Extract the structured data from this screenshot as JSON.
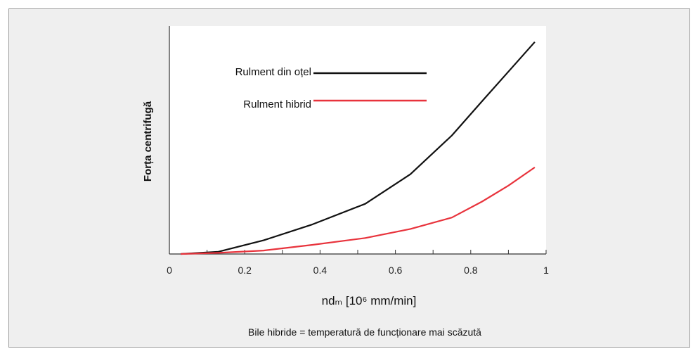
{
  "chart_data": {
    "type": "line",
    "title": "",
    "xlabel": "ndₘ [10⁶ mm/min]",
    "ylabel": "Forța centrifugă",
    "xlim": [
      0,
      1
    ],
    "ylim": [
      0,
      1
    ],
    "x_ticks": [
      "0",
      "0.2",
      "0.4",
      "0.6",
      "0.8",
      "1"
    ],
    "y_ticks_shown": false,
    "grid": false,
    "legend_position": "top-left",
    "caption": "Bile hibride = temperatură de funcționare mai scăzută",
    "series": [
      {
        "name": "Rulment din oțel",
        "color": "#111111",
        "x": [
          0.03,
          0.13,
          0.25,
          0.38,
          0.52,
          0.64,
          0.75,
          0.83,
          0.9,
          0.97
        ],
        "y": [
          0.0,
          0.01,
          0.06,
          0.13,
          0.22,
          0.35,
          0.52,
          0.67,
          0.8,
          0.93
        ]
      },
      {
        "name": "Rulment hibrid",
        "color": "#e8333c",
        "x": [
          0.03,
          0.13,
          0.25,
          0.38,
          0.52,
          0.64,
          0.75,
          0.83,
          0.9,
          0.97
        ],
        "y": [
          0.0,
          0.005,
          0.015,
          0.04,
          0.07,
          0.11,
          0.16,
          0.23,
          0.3,
          0.38
        ]
      }
    ]
  }
}
